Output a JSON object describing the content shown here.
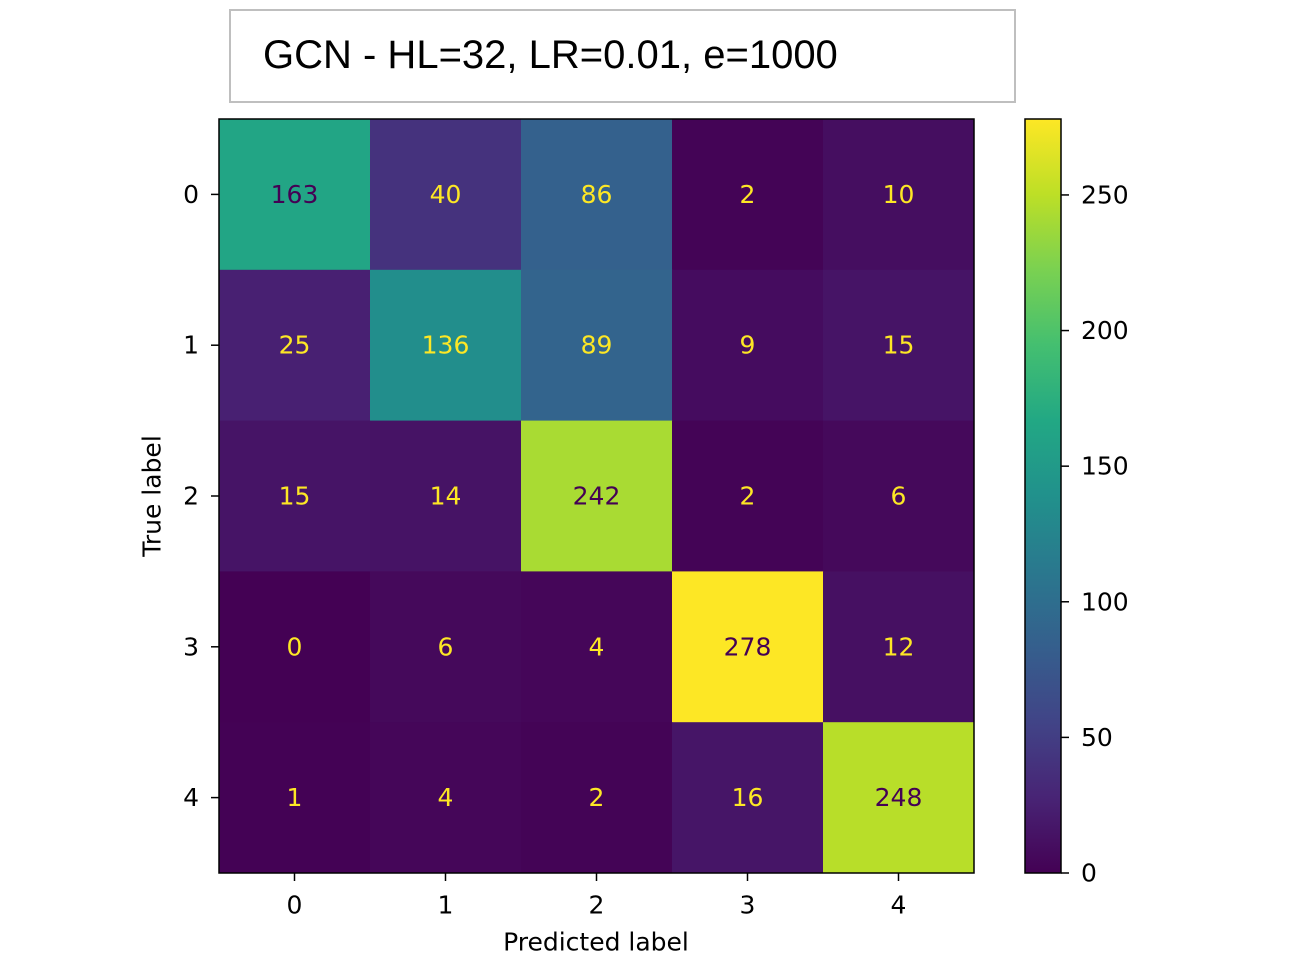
{
  "chart_data": {
    "type": "heatmap",
    "title": "GCN - HL=32, LR=0.01, e=1000",
    "xlabel": "Predicted label",
    "ylabel": "True label",
    "x_categories": [
      "0",
      "1",
      "2",
      "3",
      "4"
    ],
    "y_categories": [
      "0",
      "1",
      "2",
      "3",
      "4"
    ],
    "values": [
      [
        163,
        40,
        86,
        2,
        10
      ],
      [
        25,
        136,
        89,
        9,
        15
      ],
      [
        15,
        14,
        242,
        2,
        6
      ],
      [
        0,
        6,
        4,
        278,
        12
      ],
      [
        1,
        4,
        2,
        16,
        248
      ]
    ],
    "colormap": "viridis",
    "vmin": 0,
    "vmax": 278,
    "colorbar_ticks": [
      0,
      50,
      100,
      150,
      200,
      250
    ],
    "text_color_dark_cells": "#fde725",
    "text_color_light_cells": "#440154"
  }
}
